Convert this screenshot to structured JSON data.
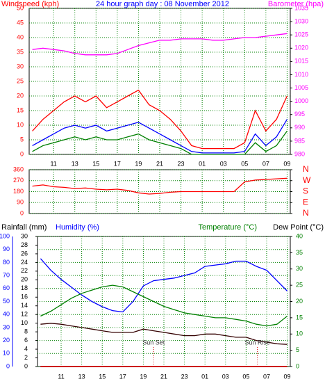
{
  "chart_data": [
    {
      "type": "line",
      "title": "24 hour graph day : 08 November 2012",
      "ylabel": "Windspeed (kph)",
      "y2label": "Barometer (hpa)",
      "x": [
        9,
        10,
        11,
        12,
        13,
        14,
        15,
        16,
        17,
        18,
        19,
        20,
        21,
        22,
        23,
        24,
        25,
        26,
        27,
        28,
        29,
        30,
        31,
        32,
        33
      ],
      "xlim": [
        8.7,
        33.3
      ],
      "xticks": [
        11,
        13,
        15,
        17,
        19,
        21,
        23,
        {
          "value": 25,
          "label": "01"
        },
        {
          "value": 27,
          "label": "03"
        },
        {
          "value": 29,
          "label": "05"
        },
        {
          "value": 31,
          "label": "07"
        },
        {
          "value": 33,
          "label": "09"
        }
      ],
      "ylim": [
        0,
        50
      ],
      "yticks": [
        0,
        5,
        10,
        15,
        20,
        25,
        30,
        35,
        40,
        45,
        50
      ],
      "y2lim": [
        980,
        1035
      ],
      "y2ticks": [
        980,
        985,
        990,
        995,
        1000,
        1005,
        1010,
        1015,
        1020,
        1025,
        1030,
        1035
      ],
      "grid": true,
      "series": [
        {
          "color": "#ff0000",
          "values": [
            8,
            12,
            15,
            18,
            20,
            18,
            20,
            16,
            18,
            20,
            22,
            17,
            15,
            12,
            8,
            3,
            2,
            2,
            2,
            2,
            4,
            15,
            8,
            12,
            20
          ]
        },
        {
          "color": "#0000ff",
          "values": [
            3,
            5,
            7,
            9,
            10,
            9,
            10,
            8,
            9,
            10,
            11,
            9,
            7,
            5,
            3,
            1,
            0.5,
            0.5,
            0.5,
            0.5,
            1,
            7,
            3,
            6,
            12
          ]
        },
        {
          "color": "#008000",
          "values": [
            1,
            3,
            4,
            5,
            6,
            5,
            6,
            5,
            5,
            6,
            7,
            5,
            4,
            3,
            2,
            0,
            0,
            0,
            0,
            0,
            0,
            4,
            1,
            3,
            8
          ]
        },
        {
          "color": "#ff00ff",
          "axis": "y2",
          "values": [
            1019.5,
            1020,
            1019.5,
            1019,
            1018,
            1017.5,
            1017.5,
            1017.5,
            1018,
            1019.5,
            1021,
            1022,
            1023,
            1023,
            1023.5,
            1023.5,
            1023.5,
            1023,
            1023,
            1023.5,
            1024,
            1024,
            1024.5,
            1025,
            1025.5
          ]
        }
      ]
    },
    {
      "type": "line",
      "x": [
        9,
        10,
        11,
        12,
        13,
        14,
        15,
        16,
        17,
        18,
        19,
        20,
        21,
        22,
        23,
        24,
        25,
        26,
        27,
        28,
        29,
        30,
        31,
        32,
        33
      ],
      "xlim": [
        8.7,
        33.3
      ],
      "ylim": [
        0,
        360
      ],
      "yticks": [
        0,
        90,
        180,
        270,
        360
      ],
      "y2lim": [
        0,
        360
      ],
      "y2ticks": [
        {
          "value": 0,
          "label": "N"
        },
        {
          "value": 90,
          "label": "E"
        },
        {
          "value": 180,
          "label": "S"
        },
        {
          "value": 270,
          "label": "W"
        },
        {
          "value": 360,
          "label": "N"
        }
      ],
      "grid": true,
      "series": [
        {
          "color": "#ff0000",
          "values": [
            225,
            235,
            220,
            215,
            205,
            210,
            200,
            195,
            200,
            190,
            170,
            160,
            165,
            175,
            180,
            180,
            180,
            180,
            180,
            180,
            260,
            275,
            280,
            285,
            290
          ]
        }
      ]
    },
    {
      "type": "line",
      "y3label": "Rainfall (mm)",
      "ylabel": "Humidity (%)",
      "y2label": "Temperature (°C)",
      "y4label": "Dew Point (°C)",
      "x": [
        9,
        10,
        11,
        12,
        13,
        14,
        15,
        16,
        17,
        18,
        19,
        20,
        21,
        22,
        23,
        24,
        25,
        26,
        27,
        28,
        29,
        30,
        31,
        32,
        33
      ],
      "xlim": [
        8.7,
        33.3
      ],
      "xticks": [
        11,
        13,
        15,
        17,
        19,
        21,
        23,
        {
          "value": 25,
          "label": "01"
        },
        {
          "value": 27,
          "label": "03"
        },
        {
          "value": 29,
          "label": "05"
        },
        {
          "value": 31,
          "label": "07"
        },
        {
          "value": 33,
          "label": "09"
        }
      ],
      "ylim": [
        0,
        100
      ],
      "yticks": [
        0,
        10,
        20,
        30,
        40,
        50,
        60,
        70,
        80,
        90,
        100
      ],
      "y3lim": [
        0,
        30
      ],
      "y3ticks": [
        0,
        2,
        4,
        6,
        8,
        10,
        12,
        14,
        16,
        18,
        20,
        22,
        24,
        26,
        28,
        30
      ],
      "y2lim": [
        0,
        40
      ],
      "y2ticks": [
        0,
        5,
        10,
        15,
        20,
        25,
        30,
        35,
        40
      ],
      "grid": true,
      "series": [
        {
          "color": "#0000ff",
          "values": [
            83,
            74,
            67,
            61,
            55,
            50,
            46,
            43,
            42,
            50,
            62,
            66,
            67,
            68,
            70,
            72,
            77,
            78,
            79,
            81,
            81,
            77,
            74,
            66,
            58
          ]
        },
        {
          "color": "#008000",
          "axis": "y2",
          "values": [
            15.5,
            17,
            19,
            21,
            22.5,
            23.5,
            24.5,
            25,
            24.5,
            23,
            21.5,
            20,
            18.5,
            17.5,
            16.5,
            16,
            15.5,
            15,
            15,
            14.5,
            14,
            13,
            12.5,
            13,
            15.5
          ]
        },
        {
          "color": "#330000",
          "axis": "y2",
          "values": [
            13,
            13.3,
            13,
            12.5,
            12,
            11.5,
            11,
            10.5,
            10.5,
            10.5,
            11.5,
            11,
            10.5,
            10,
            9.5,
            9.5,
            10,
            10,
            9.5,
            9,
            9,
            8,
            7.5,
            7,
            6.8
          ]
        },
        {
          "color": "#cc0000",
          "axis": "y3",
          "values": [
            0,
            0,
            0,
            0,
            0,
            0,
            0,
            0,
            0,
            0,
            0,
            0,
            0,
            0,
            0,
            0,
            0,
            0,
            0,
            0,
            0,
            0,
            0,
            0,
            0
          ]
        }
      ],
      "annotations": [
        {
          "text": "Sun Set",
          "x": 20
        },
        {
          "text": "Sun Rise",
          "x": 30.1
        }
      ]
    }
  ]
}
